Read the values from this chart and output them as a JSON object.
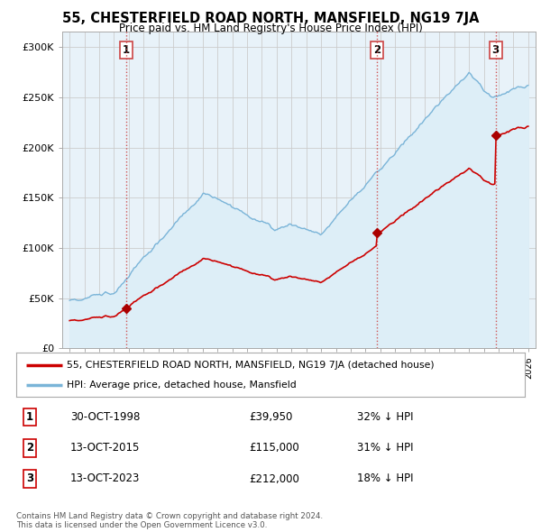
{
  "title": "55, CHESTERFIELD ROAD NORTH, MANSFIELD, NG19 7JA",
  "subtitle": "Price paid vs. HM Land Registry's House Price Index (HPI)",
  "ylabel_ticks": [
    "£0",
    "£50K",
    "£100K",
    "£150K",
    "£200K",
    "£250K",
    "£300K"
  ],
  "ytick_values": [
    0,
    50000,
    100000,
    150000,
    200000,
    250000,
    300000
  ],
  "ylim": [
    0,
    315000
  ],
  "xlim_start": 1994.5,
  "xlim_end": 2026.5,
  "hpi_color": "#7ab4d8",
  "hpi_fill_color": "#ddeef7",
  "price_color": "#cc0000",
  "sale_marker_color": "#aa0000",
  "sale_dates": [
    1998.83,
    2015.79,
    2023.79
  ],
  "sale_prices": [
    39950,
    115000,
    212000
  ],
  "sale_labels": [
    "1",
    "2",
    "3"
  ],
  "vline_color": "#cc4444",
  "vline_style": ":",
  "legend_house_label": "55, CHESTERFIELD ROAD NORTH, MANSFIELD, NG19 7JA (detached house)",
  "legend_hpi_label": "HPI: Average price, detached house, Mansfield",
  "table_rows": [
    {
      "num": "1",
      "date": "30-OCT-1998",
      "price": "£39,950",
      "hpi": "32% ↓ HPI"
    },
    {
      "num": "2",
      "date": "13-OCT-2015",
      "price": "£115,000",
      "hpi": "31% ↓ HPI"
    },
    {
      "num": "3",
      "date": "13-OCT-2023",
      "price": "£212,000",
      "hpi": "18% ↓ HPI"
    }
  ],
  "footer": "Contains HM Land Registry data © Crown copyright and database right 2024.\nThis data is licensed under the Open Government Licence v3.0.",
  "bg_color": "#ffffff",
  "plot_bg_color": "#e8f2f9",
  "grid_color": "#cccccc"
}
